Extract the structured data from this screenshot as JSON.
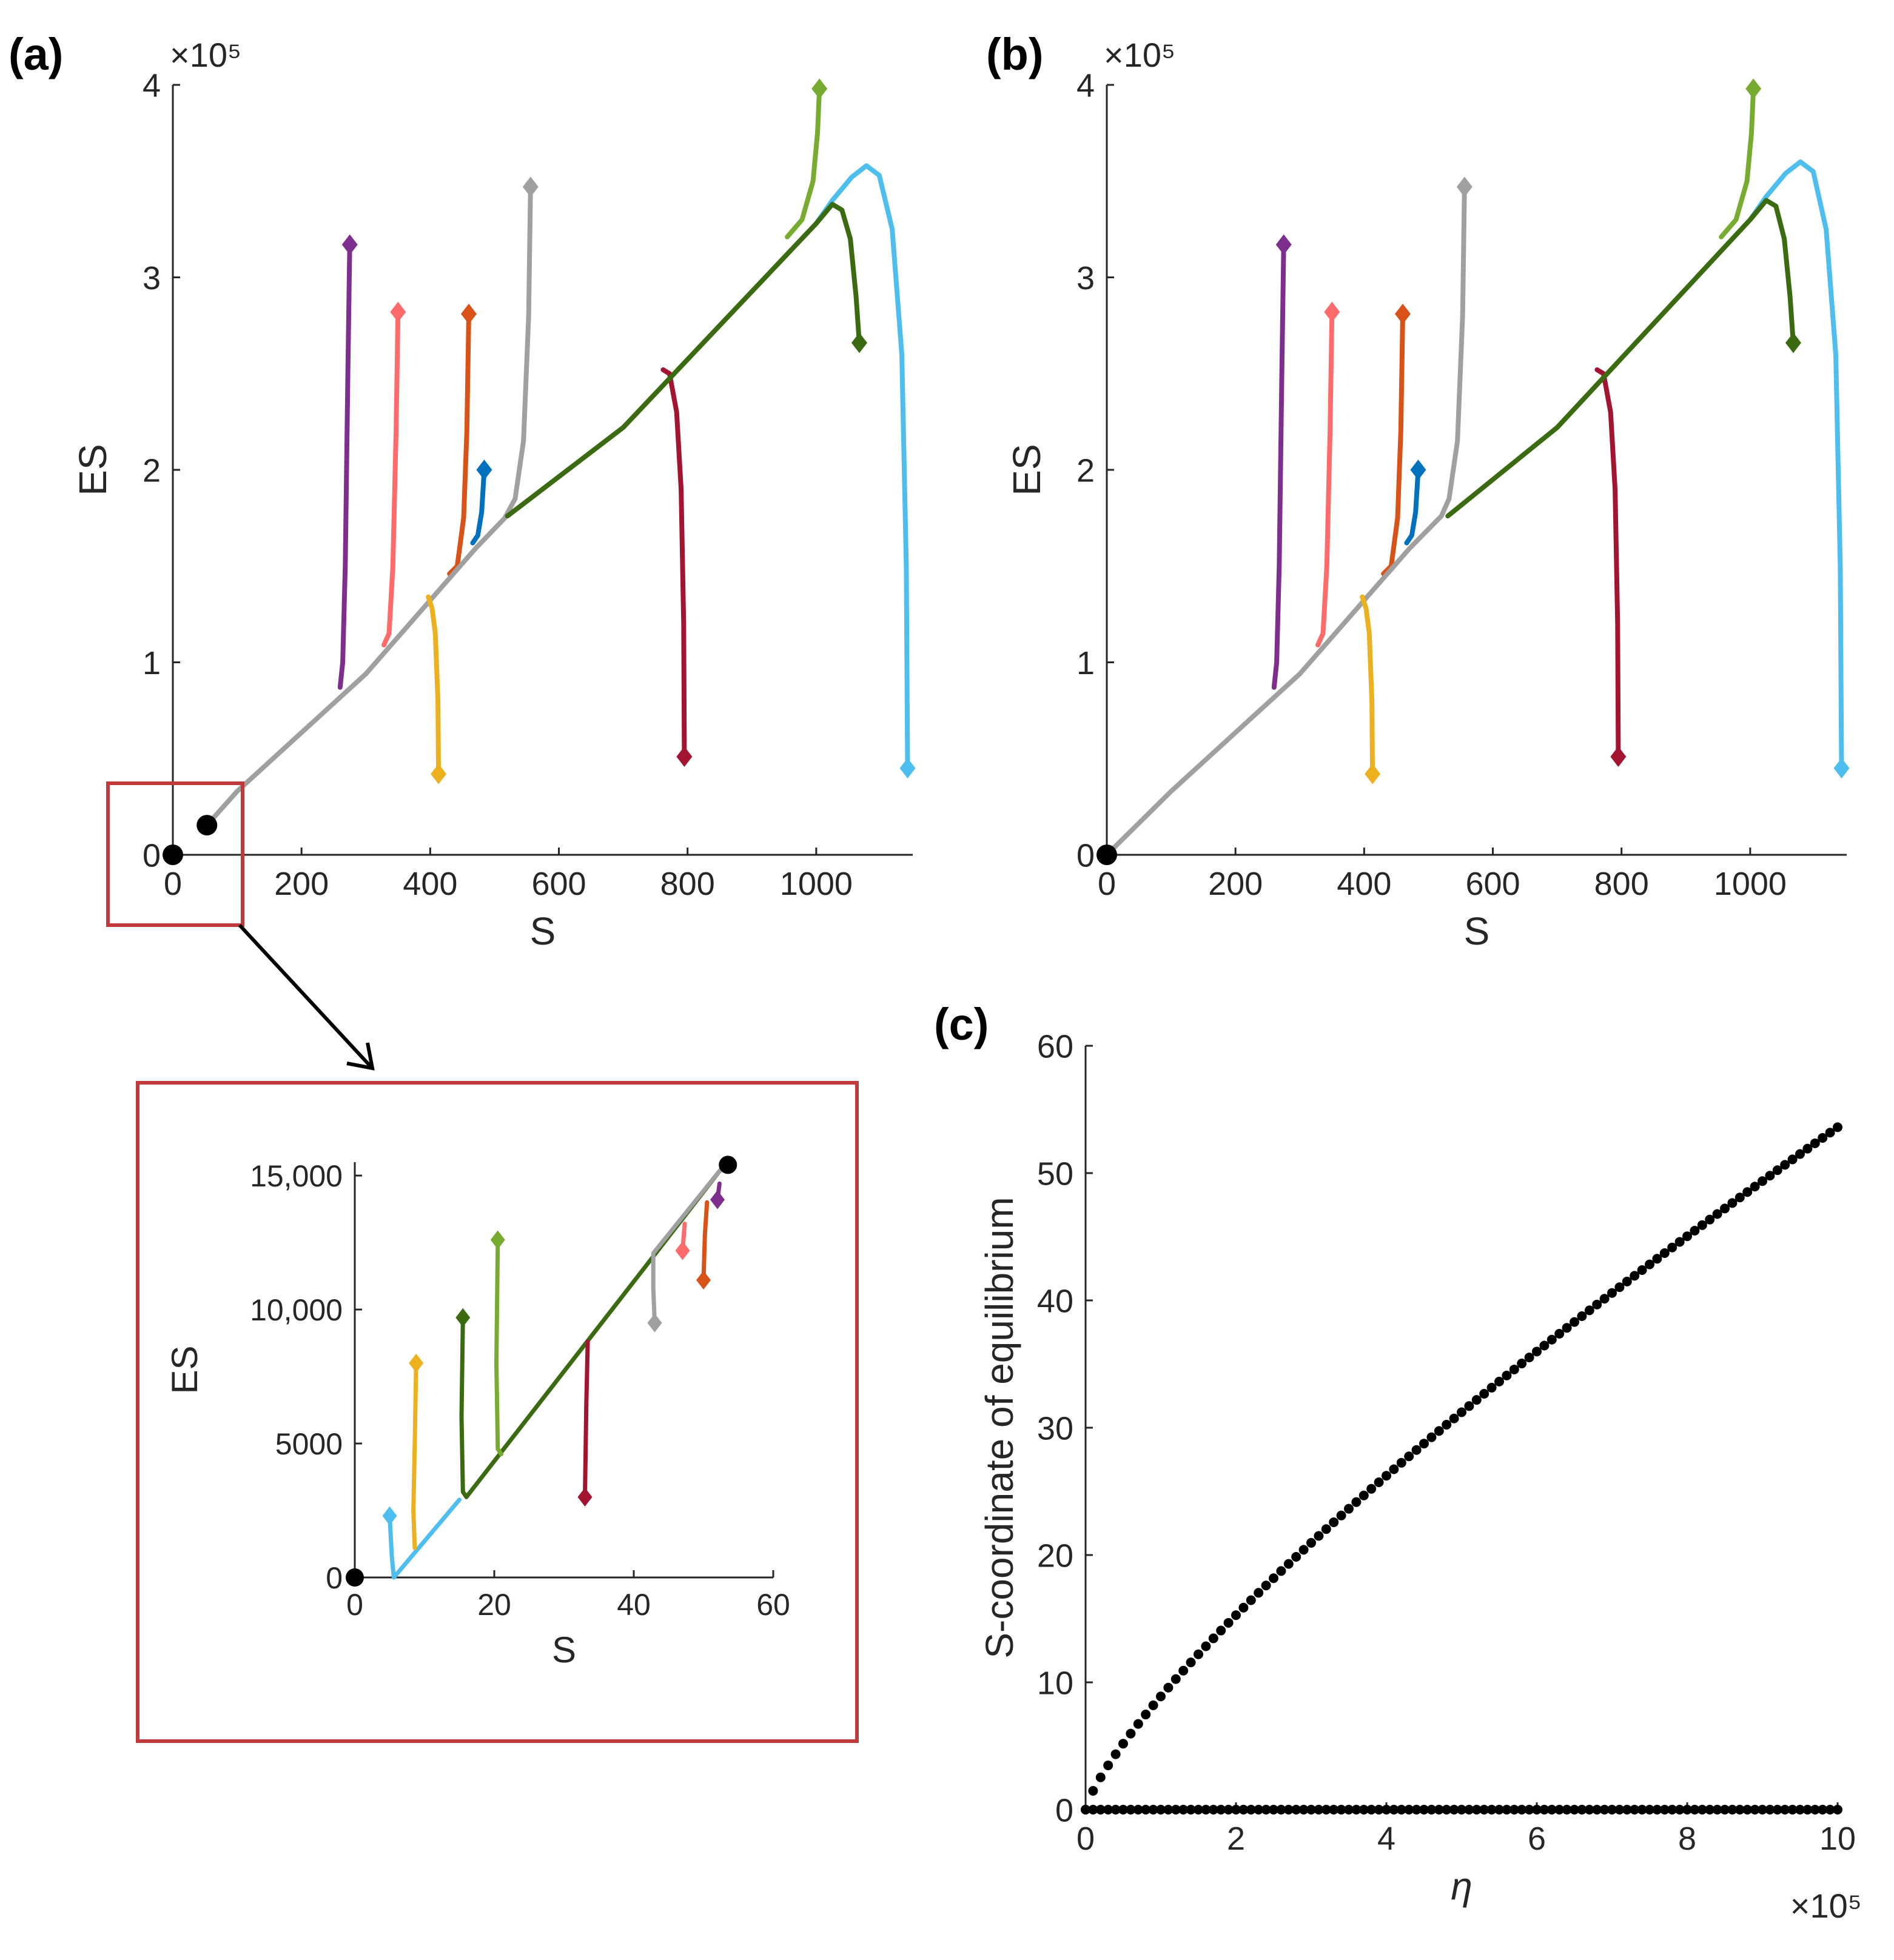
{
  "panels": {
    "a": "(a)",
    "b": "(b)",
    "c": "(c)"
  },
  "colors": {
    "purple": "#7E2F8E",
    "salmon": "#FF6B6B",
    "orange": "#D95319",
    "blue": "#0072BD",
    "gray": "#A0A0A0",
    "yellow": "#EDB120",
    "crimson": "#A2142F",
    "lightgreen": "#77AC30",
    "darkgreen": "#3A6B10",
    "skyblue": "#4DBEEE",
    "black": "#000000",
    "zoombox": "#C0393B"
  },
  "chart_data": [
    {
      "id": "a",
      "type": "line",
      "title": "",
      "xlabel": "S",
      "ylabel": "ES",
      "y_exponent": "×10⁵",
      "xlim": [
        0,
        1150
      ],
      "ylim": [
        0,
        400000
      ],
      "xticks": [
        0,
        200,
        400,
        600,
        800,
        1000
      ],
      "yticks": [
        0,
        100000,
        200000,
        300000,
        400000
      ],
      "ytick_labels": [
        "0",
        "1",
        "2",
        "3",
        "4"
      ],
      "equilibria": [
        [
          0,
          0
        ],
        [
          53,
          15400
        ]
      ],
      "series": [
        {
          "color": "purple",
          "start": [
            275,
            317000
          ],
          "points": [
            [
              275,
              317000
            ],
            [
              272,
              250000
            ],
            [
              268,
              150000
            ],
            [
              264,
              100000
            ],
            [
              260,
              87000
            ]
          ]
        },
        {
          "color": "salmon",
          "start": [
            350,
            282000
          ],
          "points": [
            [
              350,
              282000
            ],
            [
              347,
              220000
            ],
            [
              342,
              150000
            ],
            [
              336,
              115000
            ],
            [
              328,
              109000
            ]
          ]
        },
        {
          "color": "orange",
          "start": [
            460,
            281000
          ],
          "points": [
            [
              460,
              281000
            ],
            [
              457,
              220000
            ],
            [
              452,
              175000
            ],
            [
              442,
              150000
            ],
            [
              430,
              146000
            ]
          ]
        },
        {
          "color": "blue",
          "start": [
            484,
            200000
          ],
          "points": [
            [
              484,
              200000
            ],
            [
              480,
              178000
            ],
            [
              474,
              166000
            ],
            [
              466,
              162000
            ]
          ]
        },
        {
          "color": "gray",
          "start": [
            556,
            347000
          ],
          "points": [
            [
              556,
              347000
            ],
            [
              553,
              280000
            ],
            [
              545,
              215000
            ],
            [
              532,
              185000
            ],
            [
              516,
              175000
            ],
            [
              470,
              159000
            ],
            [
              300,
              94000
            ],
            [
              100,
              33000
            ],
            [
              53,
              15400
            ]
          ]
        },
        {
          "color": "yellow",
          "start": [
            413,
            42000
          ],
          "points": [
            [
              413,
              42000
            ],
            [
              412,
              80000
            ],
            [
              408,
              115000
            ],
            [
              403,
              128000
            ],
            [
              397,
              134000
            ]
          ]
        },
        {
          "color": "crimson",
          "start": [
            795,
            51000
          ],
          "points": [
            [
              795,
              51000
            ],
            [
              794,
              120000
            ],
            [
              790,
              190000
            ],
            [
              783,
              230000
            ],
            [
              772,
              250000
            ],
            [
              762,
              252000
            ]
          ]
        },
        {
          "color": "skyblue",
          "start": [
            1142,
            45000
          ],
          "points": [
            [
              1142,
              45000
            ],
            [
              1140,
              150000
            ],
            [
              1133,
              260000
            ],
            [
              1118,
              325000
            ],
            [
              1098,
              353000
            ],
            [
              1078,
              358000
            ],
            [
              1055,
              352000
            ],
            [
              1025,
              340000
            ],
            [
              1000,
              328000
            ]
          ]
        },
        {
          "color": "lightgreen",
          "start": [
            1005,
            398000
          ],
          "points": [
            [
              1005,
              398000
            ],
            [
              1002,
              375000
            ],
            [
              995,
              350000
            ],
            [
              978,
              330000
            ],
            [
              955,
              321000
            ]
          ]
        },
        {
          "color": "darkgreen",
          "start": [
            1067,
            266000
          ],
          "points": [
            [
              1067,
              266000
            ],
            [
              1062,
              290000
            ],
            [
              1053,
              320000
            ],
            [
              1040,
              335000
            ],
            [
              1025,
              338000
            ],
            [
              1000,
              328000
            ],
            [
              700,
              222000
            ],
            [
              520,
              176000
            ]
          ]
        }
      ]
    },
    {
      "id": "b",
      "type": "line",
      "title": "",
      "xlabel": "S",
      "ylabel": "ES",
      "y_exponent": "×10⁵",
      "xlim": [
        0,
        1150
      ],
      "ylim": [
        0,
        400000
      ],
      "xticks": [
        0,
        200,
        400,
        600,
        800,
        1000
      ],
      "yticks": [
        0,
        100000,
        200000,
        300000,
        400000
      ],
      "ytick_labels": [
        "0",
        "1",
        "2",
        "3",
        "4"
      ],
      "equilibria": [
        [
          0,
          0
        ]
      ],
      "series": [
        {
          "color": "purple",
          "start": [
            275,
            317000
          ],
          "points": [
            [
              275,
              317000
            ],
            [
              272,
              250000
            ],
            [
              268,
              150000
            ],
            [
              264,
              100000
            ],
            [
              260,
              87000
            ]
          ]
        },
        {
          "color": "salmon",
          "start": [
            350,
            282000
          ],
          "points": [
            [
              350,
              282000
            ],
            [
              347,
              220000
            ],
            [
              342,
              150000
            ],
            [
              336,
              115000
            ],
            [
              328,
              109000
            ]
          ]
        },
        {
          "color": "orange",
          "start": [
            460,
            281000
          ],
          "points": [
            [
              460,
              281000
            ],
            [
              457,
              220000
            ],
            [
              452,
              175000
            ],
            [
              442,
              150000
            ],
            [
              430,
              146000
            ]
          ]
        },
        {
          "color": "blue",
          "start": [
            484,
            200000
          ],
          "points": [
            [
              484,
              200000
            ],
            [
              480,
              178000
            ],
            [
              474,
              166000
            ],
            [
              466,
              162000
            ]
          ]
        },
        {
          "color": "gray",
          "start": [
            556,
            347000
          ],
          "points": [
            [
              556,
              347000
            ],
            [
              553,
              280000
            ],
            [
              545,
              215000
            ],
            [
              532,
              185000
            ],
            [
              520,
              176000
            ],
            [
              470,
              159000
            ],
            [
              300,
              94000
            ],
            [
              100,
              33000
            ],
            [
              0,
              0
            ]
          ]
        },
        {
          "color": "yellow",
          "start": [
            413,
            42000
          ],
          "points": [
            [
              413,
              42000
            ],
            [
              412,
              80000
            ],
            [
              408,
              115000
            ],
            [
              403,
              128000
            ],
            [
              397,
              134000
            ]
          ]
        },
        {
          "color": "crimson",
          "start": [
            795,
            51000
          ],
          "points": [
            [
              795,
              51000
            ],
            [
              794,
              120000
            ],
            [
              790,
              190000
            ],
            [
              783,
              230000
            ],
            [
              772,
              250000
            ],
            [
              762,
              252000
            ]
          ]
        },
        {
          "color": "skyblue",
          "start": [
            1142,
            45000
          ],
          "points": [
            [
              1142,
              45000
            ],
            [
              1140,
              150000
            ],
            [
              1133,
              260000
            ],
            [
              1118,
              325000
            ],
            [
              1098,
              355000
            ],
            [
              1078,
              360000
            ],
            [
              1055,
              354000
            ],
            [
              1025,
              342000
            ],
            [
              1000,
              330000
            ]
          ]
        },
        {
          "color": "lightgreen",
          "start": [
            1005,
            398000
          ],
          "points": [
            [
              1005,
              398000
            ],
            [
              1002,
              375000
            ],
            [
              995,
              350000
            ],
            [
              978,
              330000
            ],
            [
              955,
              321000
            ]
          ]
        },
        {
          "color": "darkgreen",
          "start": [
            1067,
            266000
          ],
          "points": [
            [
              1067,
              266000
            ],
            [
              1062,
              290000
            ],
            [
              1053,
              320000
            ],
            [
              1040,
              337000
            ],
            [
              1025,
              340000
            ],
            [
              1000,
              330000
            ],
            [
              700,
              222000
            ],
            [
              530,
              176000
            ]
          ]
        }
      ]
    },
    {
      "id": "inset",
      "type": "line",
      "title": "",
      "xlabel": "S",
      "ylabel": "ES",
      "xlim": [
        0,
        60
      ],
      "ylim": [
        0,
        15500
      ],
      "xticks": [
        0,
        20,
        40,
        60
      ],
      "yticks": [
        0,
        5000,
        10000,
        15000
      ],
      "ytick_labels": [
        "0",
        "5000",
        "10,000",
        "15,000"
      ],
      "equilibria": [
        [
          0,
          0
        ],
        [
          53.5,
          15400
        ]
      ],
      "series": [
        {
          "color": "skyblue",
          "start": [
            5,
            2300
          ],
          "points": [
            [
              5,
              2300
            ],
            [
              5.3,
              800
            ],
            [
              5.6,
              0
            ],
            [
              15,
              2900
            ]
          ]
        },
        {
          "color": "yellow",
          "start": [
            8.8,
            8000
          ],
          "points": [
            [
              8.8,
              8000
            ],
            [
              8.6,
              5000
            ],
            [
              8.4,
              2500
            ],
            [
              8.6,
              1100
            ]
          ]
        },
        {
          "color": "darkgreen",
          "start": [
            15.5,
            9700
          ],
          "points": [
            [
              15.5,
              9700
            ],
            [
              15.3,
              6000
            ],
            [
              15.5,
              3200
            ],
            [
              16,
              3000
            ],
            [
              53,
              15400
            ]
          ]
        },
        {
          "color": "lightgreen",
          "start": [
            20.5,
            12600
          ],
          "points": [
            [
              20.5,
              12600
            ],
            [
              20.3,
              8000
            ],
            [
              20.5,
              4800
            ],
            [
              21,
              4600
            ]
          ]
        },
        {
          "color": "crimson",
          "start": [
            33,
            3000
          ],
          "points": [
            [
              33,
              3000
            ],
            [
              33.2,
              6500
            ],
            [
              33.4,
              8800
            ]
          ]
        },
        {
          "color": "gray",
          "start": [
            43,
            9500
          ],
          "points": [
            [
              43,
              9500
            ],
            [
              42.8,
              10800
            ],
            [
              42.8,
              12100
            ],
            [
              53,
              15400
            ]
          ]
        },
        {
          "color": "salmon",
          "start": [
            47,
            12200
          ],
          "points": [
            [
              47,
              12200
            ],
            [
              47.3,
              13200
            ]
          ]
        },
        {
          "color": "orange",
          "start": [
            50,
            11100
          ],
          "points": [
            [
              50,
              11100
            ],
            [
              50.2,
              12800
            ],
            [
              50.5,
              14000
            ]
          ]
        },
        {
          "color": "purple",
          "start": [
            52,
            14100
          ],
          "points": [
            [
              52,
              14100
            ],
            [
              52.3,
              14700
            ]
          ]
        }
      ]
    },
    {
      "id": "c",
      "type": "scatter",
      "title": "",
      "xlabel": "η",
      "ylabel": "S-coordinate of equilibrium",
      "x_exponent": "×10⁵",
      "xlim": [
        0,
        1000000
      ],
      "ylim": [
        0,
        60
      ],
      "xticks": [
        0,
        200000,
        400000,
        600000,
        800000,
        1000000
      ],
      "xtick_labels": [
        "0",
        "2",
        "4",
        "6",
        "8",
        "10"
      ],
      "yticks": [
        0,
        10,
        20,
        30,
        40,
        50,
        60
      ],
      "series": [
        {
          "name": "",
          "formula_note": "",
          "x_start": 0,
          "x_end": 1000000,
          "n": 101,
          "upper_end": 53.6
        },
        {
          "name": "",
          "x_start": 0,
          "x_end": 1000000,
          "n": 101,
          "value": 0
        }
      ]
    }
  ]
}
